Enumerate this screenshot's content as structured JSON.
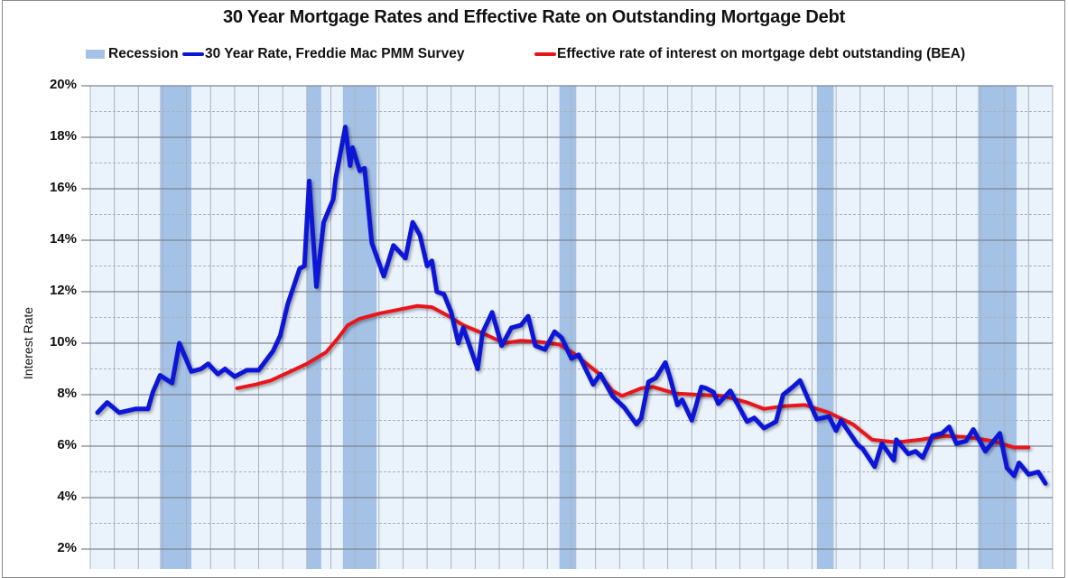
{
  "chart_data": {
    "type": "line",
    "title": "30 Year Mortgage Rates and Effective Rate on Outstanding Mortgage Debt",
    "xlabel": "",
    "ylabel": "Interest Rate",
    "ylim": [
      2,
      20
    ],
    "yticks": [
      "2%",
      "4%",
      "6%",
      "8%",
      "10%",
      "12%",
      "14%",
      "16%",
      "18%",
      "20%"
    ],
    "ytick_values": [
      2,
      4,
      6,
      8,
      10,
      12,
      14,
      16,
      18,
      20
    ],
    "xlim": [
      1971,
      2011
    ],
    "x_tick_labels_visible": false,
    "grid": {
      "major_horizontal": true,
      "minor_horizontal_dashed": true,
      "vertical_yearly": true
    },
    "legend_position": "top",
    "legend": [
      {
        "label": "Recession",
        "kind": "band",
        "color": "#a4c1e6"
      },
      {
        "label": "30 Year Rate, Freddie Mac PMM Survey",
        "kind": "line",
        "color": "#0a18d6"
      },
      {
        "label": "Effective rate of interest on mortgage debt outstanding (BEA)",
        "kind": "line",
        "color": "#e8141b"
      }
    ],
    "recessions": [
      {
        "start": 1973.9,
        "end": 1975.2
      },
      {
        "start": 1980.0,
        "end": 1980.6
      },
      {
        "start": 1981.5,
        "end": 1982.9
      },
      {
        "start": 1990.5,
        "end": 1991.2
      },
      {
        "start": 2001.2,
        "end": 2001.9
      },
      {
        "start": 2007.9,
        "end": 2009.5
      }
    ],
    "series": [
      {
        "name": "30 Year Rate, Freddie Mac PMM Survey",
        "color": "#0a18d6",
        "points": [
          [
            1971.3,
            7.3
          ],
          [
            1971.7,
            7.7
          ],
          [
            1972.2,
            7.3
          ],
          [
            1972.9,
            7.45
          ],
          [
            1973.4,
            7.45
          ],
          [
            1973.6,
            8.1
          ],
          [
            1973.9,
            8.75
          ],
          [
            1974.4,
            8.45
          ],
          [
            1974.7,
            10.0
          ],
          [
            1975.2,
            8.9
          ],
          [
            1975.6,
            9.0
          ],
          [
            1975.9,
            9.2
          ],
          [
            1976.3,
            8.8
          ],
          [
            1976.6,
            9.0
          ],
          [
            1977.0,
            8.7
          ],
          [
            1977.5,
            8.95
          ],
          [
            1978.0,
            8.95
          ],
          [
            1978.6,
            9.7
          ],
          [
            1978.9,
            10.3
          ],
          [
            1979.2,
            11.5
          ],
          [
            1979.7,
            12.9
          ],
          [
            1979.9,
            13.0
          ],
          [
            1980.1,
            16.3
          ],
          [
            1980.4,
            12.2
          ],
          [
            1980.7,
            14.7
          ],
          [
            1981.1,
            15.6
          ],
          [
            1981.2,
            16.4
          ],
          [
            1981.6,
            18.4
          ],
          [
            1981.8,
            16.9
          ],
          [
            1981.9,
            17.6
          ],
          [
            1982.2,
            16.7
          ],
          [
            1982.4,
            16.8
          ],
          [
            1982.7,
            13.9
          ],
          [
            1983.2,
            12.6
          ],
          [
            1983.6,
            13.8
          ],
          [
            1984.1,
            13.3
          ],
          [
            1984.4,
            14.7
          ],
          [
            1984.7,
            14.2
          ],
          [
            1985.0,
            13.0
          ],
          [
            1985.2,
            13.2
          ],
          [
            1985.4,
            12.0
          ],
          [
            1985.7,
            11.9
          ],
          [
            1986.0,
            11.2
          ],
          [
            1986.3,
            10.0
          ],
          [
            1986.5,
            10.6
          ],
          [
            1987.1,
            9.0
          ],
          [
            1987.3,
            10.4
          ],
          [
            1987.7,
            11.2
          ],
          [
            1988.1,
            9.9
          ],
          [
            1988.5,
            10.6
          ],
          [
            1988.9,
            10.7
          ],
          [
            1989.2,
            11.05
          ],
          [
            1989.5,
            9.9
          ],
          [
            1989.9,
            9.75
          ],
          [
            1990.3,
            10.45
          ],
          [
            1990.6,
            10.2
          ],
          [
            1991.0,
            9.4
          ],
          [
            1991.3,
            9.55
          ],
          [
            1991.9,
            8.4
          ],
          [
            1992.2,
            8.8
          ],
          [
            1992.7,
            7.95
          ],
          [
            1993.2,
            7.5
          ],
          [
            1993.7,
            6.85
          ],
          [
            1993.9,
            7.1
          ],
          [
            1994.2,
            8.5
          ],
          [
            1994.5,
            8.65
          ],
          [
            1994.9,
            9.25
          ],
          [
            1995.1,
            8.65
          ],
          [
            1995.4,
            7.6
          ],
          [
            1995.6,
            7.8
          ],
          [
            1996.0,
            7.0
          ],
          [
            1996.4,
            8.3
          ],
          [
            1996.6,
            8.25
          ],
          [
            1996.9,
            8.1
          ],
          [
            1997.1,
            7.65
          ],
          [
            1997.6,
            8.15
          ],
          [
            1998.3,
            6.95
          ],
          [
            1998.6,
            7.1
          ],
          [
            1999.0,
            6.7
          ],
          [
            1999.5,
            6.95
          ],
          [
            1999.8,
            8.0
          ],
          [
            2000.2,
            8.3
          ],
          [
            2000.5,
            8.55
          ],
          [
            2000.8,
            7.9
          ],
          [
            2001.2,
            7.05
          ],
          [
            2001.7,
            7.15
          ],
          [
            2002.0,
            6.6
          ],
          [
            2002.2,
            7.0
          ],
          [
            2002.9,
            6.05
          ],
          [
            2003.1,
            5.9
          ],
          [
            2003.6,
            5.2
          ],
          [
            2003.9,
            6.1
          ],
          [
            2004.4,
            5.45
          ],
          [
            2004.5,
            6.25
          ],
          [
            2005.0,
            5.7
          ],
          [
            2005.3,
            5.8
          ],
          [
            2005.6,
            5.55
          ],
          [
            2006.0,
            6.4
          ],
          [
            2006.4,
            6.5
          ],
          [
            2006.7,
            6.75
          ],
          [
            2007.0,
            6.1
          ],
          [
            2007.4,
            6.2
          ],
          [
            2007.7,
            6.65
          ],
          [
            2008.2,
            5.8
          ],
          [
            2008.8,
            6.5
          ],
          [
            2009.1,
            5.15
          ],
          [
            2009.4,
            4.85
          ],
          [
            2009.6,
            5.35
          ],
          [
            2010.0,
            4.9
          ],
          [
            2010.4,
            5.0
          ],
          [
            2010.7,
            4.55
          ]
        ]
      },
      {
        "name": "Effective rate of interest on mortgage debt outstanding (BEA)",
        "color": "#e8141b",
        "points": [
          [
            1977.1,
            8.25
          ],
          [
            1977.9,
            8.4
          ],
          [
            1978.5,
            8.55
          ],
          [
            1979.2,
            8.85
          ],
          [
            1980.0,
            9.2
          ],
          [
            1980.8,
            9.65
          ],
          [
            1981.3,
            10.2
          ],
          [
            1981.7,
            10.7
          ],
          [
            1982.2,
            10.95
          ],
          [
            1983.0,
            11.15
          ],
          [
            1983.8,
            11.3
          ],
          [
            1984.6,
            11.45
          ],
          [
            1985.2,
            11.4
          ],
          [
            1985.9,
            11.05
          ],
          [
            1986.5,
            10.7
          ],
          [
            1987.4,
            10.35
          ],
          [
            1988.2,
            10.0
          ],
          [
            1988.9,
            10.1
          ],
          [
            1989.7,
            10.05
          ],
          [
            1990.5,
            9.95
          ],
          [
            1991.1,
            9.6
          ],
          [
            1992.1,
            8.85
          ],
          [
            1992.7,
            8.15
          ],
          [
            1993.1,
            7.95
          ],
          [
            1993.9,
            8.25
          ],
          [
            1994.4,
            8.3
          ],
          [
            1995.3,
            8.05
          ],
          [
            1996.2,
            8.0
          ],
          [
            1997.3,
            7.95
          ],
          [
            1998.3,
            7.7
          ],
          [
            1999.0,
            7.45
          ],
          [
            1999.8,
            7.55
          ],
          [
            2000.7,
            7.6
          ],
          [
            2001.7,
            7.3
          ],
          [
            2002.7,
            6.85
          ],
          [
            2003.5,
            6.25
          ],
          [
            2004.5,
            6.15
          ],
          [
            2005.5,
            6.25
          ],
          [
            2006.5,
            6.4
          ],
          [
            2007.5,
            6.35
          ],
          [
            2008.5,
            6.2
          ],
          [
            2009.4,
            5.95
          ],
          [
            2010.0,
            5.95
          ]
        ]
      }
    ]
  }
}
